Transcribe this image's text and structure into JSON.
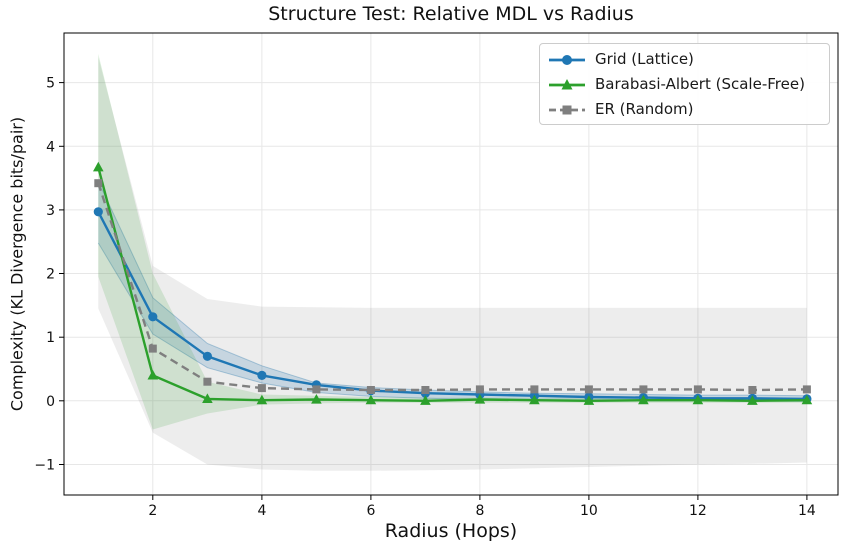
{
  "chart_data": {
    "type": "line",
    "title": "Structure Test: Relative MDL vs Radius",
    "xlabel": "Radius (Hops)",
    "ylabel": "Complexity (KL Divergence bits/pair)",
    "x": [
      1,
      2,
      3,
      4,
      5,
      6,
      7,
      8,
      9,
      10,
      11,
      12,
      13,
      14
    ],
    "xticks": [
      2,
      4,
      6,
      8,
      10,
      12,
      14
    ],
    "yticks": [
      -1,
      0,
      1,
      2,
      3,
      4,
      5
    ],
    "xlim": [
      0.37,
      14.57
    ],
    "ylim": [
      -1.48,
      5.78
    ],
    "grid": true,
    "grid_color": "#e7e7e7",
    "axis_color": "#000000",
    "legend_position": "upper right",
    "series": [
      {
        "name": "Grid (Lattice)",
        "color": "#1f77b4",
        "marker": "circle",
        "linestyle": "solid",
        "values": [
          2.97,
          1.32,
          0.7,
          0.4,
          0.25,
          0.16,
          0.12,
          0.1,
          0.08,
          0.06,
          0.05,
          0.04,
          0.04,
          0.03
        ],
        "band_lo": [
          2.48,
          1.05,
          0.52,
          0.28,
          0.13,
          0.07,
          0.04,
          0.02,
          0.01,
          0.01,
          0.0,
          0.0,
          0.0,
          -0.01
        ],
        "band_hi": [
          3.45,
          1.62,
          0.9,
          0.55,
          0.28,
          0.21,
          0.17,
          0.14,
          0.12,
          0.11,
          0.1,
          0.09,
          0.09,
          0.08
        ],
        "band_alpha": 0.2,
        "band_edges": true
      },
      {
        "name": "Barabasi-Albert (Scale-Free)",
        "color": "#2ca02c",
        "marker": "triangle",
        "linestyle": "solid",
        "values": [
          3.67,
          0.4,
          0.03,
          0.01,
          0.02,
          0.01,
          0.0,
          0.02,
          0.01,
          0.0,
          0.01,
          0.01,
          0.0,
          0.01
        ],
        "band_lo": [
          1.95,
          -0.45,
          -0.2,
          -0.06,
          -0.04,
          -0.03,
          -0.03,
          -0.03,
          -0.03,
          -0.03,
          -0.03,
          -0.03,
          -0.03,
          -0.03
        ],
        "band_hi": [
          5.45,
          2.0,
          0.3,
          0.1,
          0.08,
          0.06,
          0.05,
          0.05,
          0.05,
          0.05,
          0.05,
          0.05,
          0.05,
          0.05
        ],
        "band_alpha": 0.16,
        "band_edges": false
      },
      {
        "name": "ER (Random)",
        "color": "#7f7f7f",
        "marker": "square",
        "linestyle": "dashed",
        "values": [
          3.42,
          0.82,
          0.3,
          0.2,
          0.18,
          0.17,
          0.17,
          0.18,
          0.18,
          0.18,
          0.18,
          0.18,
          0.17,
          0.18
        ],
        "band_lo": [
          1.45,
          -0.5,
          -1.0,
          -1.08,
          -1.1,
          -1.1,
          -1.09,
          -1.08,
          -1.06,
          -1.04,
          -1.02,
          -1.0,
          -0.99,
          -0.97
        ],
        "band_hi": [
          5.4,
          2.12,
          1.6,
          1.48,
          1.47,
          1.46,
          1.46,
          1.46,
          1.46,
          1.46,
          1.46,
          1.46,
          1.46,
          1.46
        ],
        "band_alpha": 0.14,
        "band_edges": false
      }
    ]
  }
}
